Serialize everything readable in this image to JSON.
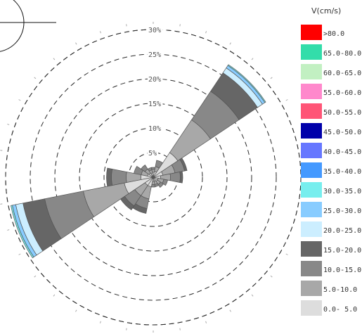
{
  "chart_data": {
    "type": "wind-rose",
    "title": "",
    "legend_title": "V(cm/s)",
    "legend_position": "right",
    "ring_labels": [
      "5%",
      "10%",
      "15%",
      "20%",
      "25%",
      "30%"
    ],
    "rmax": 30,
    "bins": [
      {
        "label": ">80.0",
        "color": "#ff0000"
      },
      {
        "label": "65.0-80.0",
        "color": "#33ddaa"
      },
      {
        "label": "60.0-65.0",
        "color": "#c2f0c2"
      },
      {
        "label": "55.0-60.0",
        "color": "#ff88cc"
      },
      {
        "label": "50.0-55.0",
        "color": "#ff5577"
      },
      {
        "label": "45.0-50.0",
        "color": "#0000aa"
      },
      {
        "label": "40.0-45.0",
        "color": "#6677ff"
      },
      {
        "label": "35.0-40.0",
        "color": "#4499ff"
      },
      {
        "label": "30.0-35.0",
        "color": "#77eeee"
      },
      {
        "label": "25.0-30.0",
        "color": "#88ccff"
      },
      {
        "label": "20.0-25.0",
        "color": "#cceeff"
      },
      {
        "label": "15.0-20.0",
        "color": "#666666"
      },
      {
        "label": "10.0-15.0",
        "color": "#888888"
      },
      {
        "label": "5.0-10.0",
        "color": "#a8a8a8"
      },
      {
        "label": "0.0- 5.0",
        "color": "#dddddd"
      }
    ],
    "sectors": [
      {
        "direction": 0,
        "total": 2.0,
        "bands": [
          1.0,
          0.6,
          0.4
        ]
      },
      {
        "direction": 22.5,
        "total": 3.5,
        "bands": [
          1.2,
          1.0,
          1.3
        ]
      },
      {
        "direction": 45,
        "total": 27.5,
        "bands": [
          6.0,
          8.0,
          7.0,
          4.5,
          1.2,
          0.6,
          0.2
        ]
      },
      {
        "direction": 67.5,
        "total": 7.0,
        "bands": [
          2.0,
          2.5,
          2.0,
          0.5
        ]
      },
      {
        "direction": 90,
        "total": 6.0,
        "bands": [
          1.5,
          2.0,
          2.0,
          0.5
        ]
      },
      {
        "direction": 112.5,
        "total": 3.0,
        "bands": [
          1.0,
          1.2,
          0.8
        ]
      },
      {
        "direction": 135,
        "total": 2.5,
        "bands": [
          1.0,
          0.8,
          0.7
        ]
      },
      {
        "direction": 157.5,
        "total": 2.0,
        "bands": [
          0.8,
          0.7,
          0.5
        ]
      },
      {
        "direction": 180,
        "total": 2.0,
        "bands": [
          0.8,
          0.7,
          0.5
        ]
      },
      {
        "direction": 202.5,
        "total": 7.5,
        "bands": [
          2.0,
          2.5,
          2.0,
          1.0
        ]
      },
      {
        "direction": 225,
        "total": 8.0,
        "bands": [
          2.0,
          2.5,
          2.5,
          1.0
        ]
      },
      {
        "direction": 247.5,
        "total": 29.5,
        "bands": [
          6.0,
          8.5,
          8.0,
          4.5,
          1.5,
          0.7,
          0.3
        ]
      },
      {
        "direction": 270,
        "total": 9.5,
        "bands": [
          2.5,
          3.0,
          3.0,
          1.0
        ]
      },
      {
        "direction": 292.5,
        "total": 4.0,
        "bands": [
          1.2,
          1.3,
          1.5
        ]
      },
      {
        "direction": 315,
        "total": 3.0,
        "bands": [
          1.0,
          1.0,
          1.0
        ]
      },
      {
        "direction": 337.5,
        "total": 2.0,
        "bands": [
          0.8,
          0.7,
          0.5
        ]
      }
    ]
  }
}
